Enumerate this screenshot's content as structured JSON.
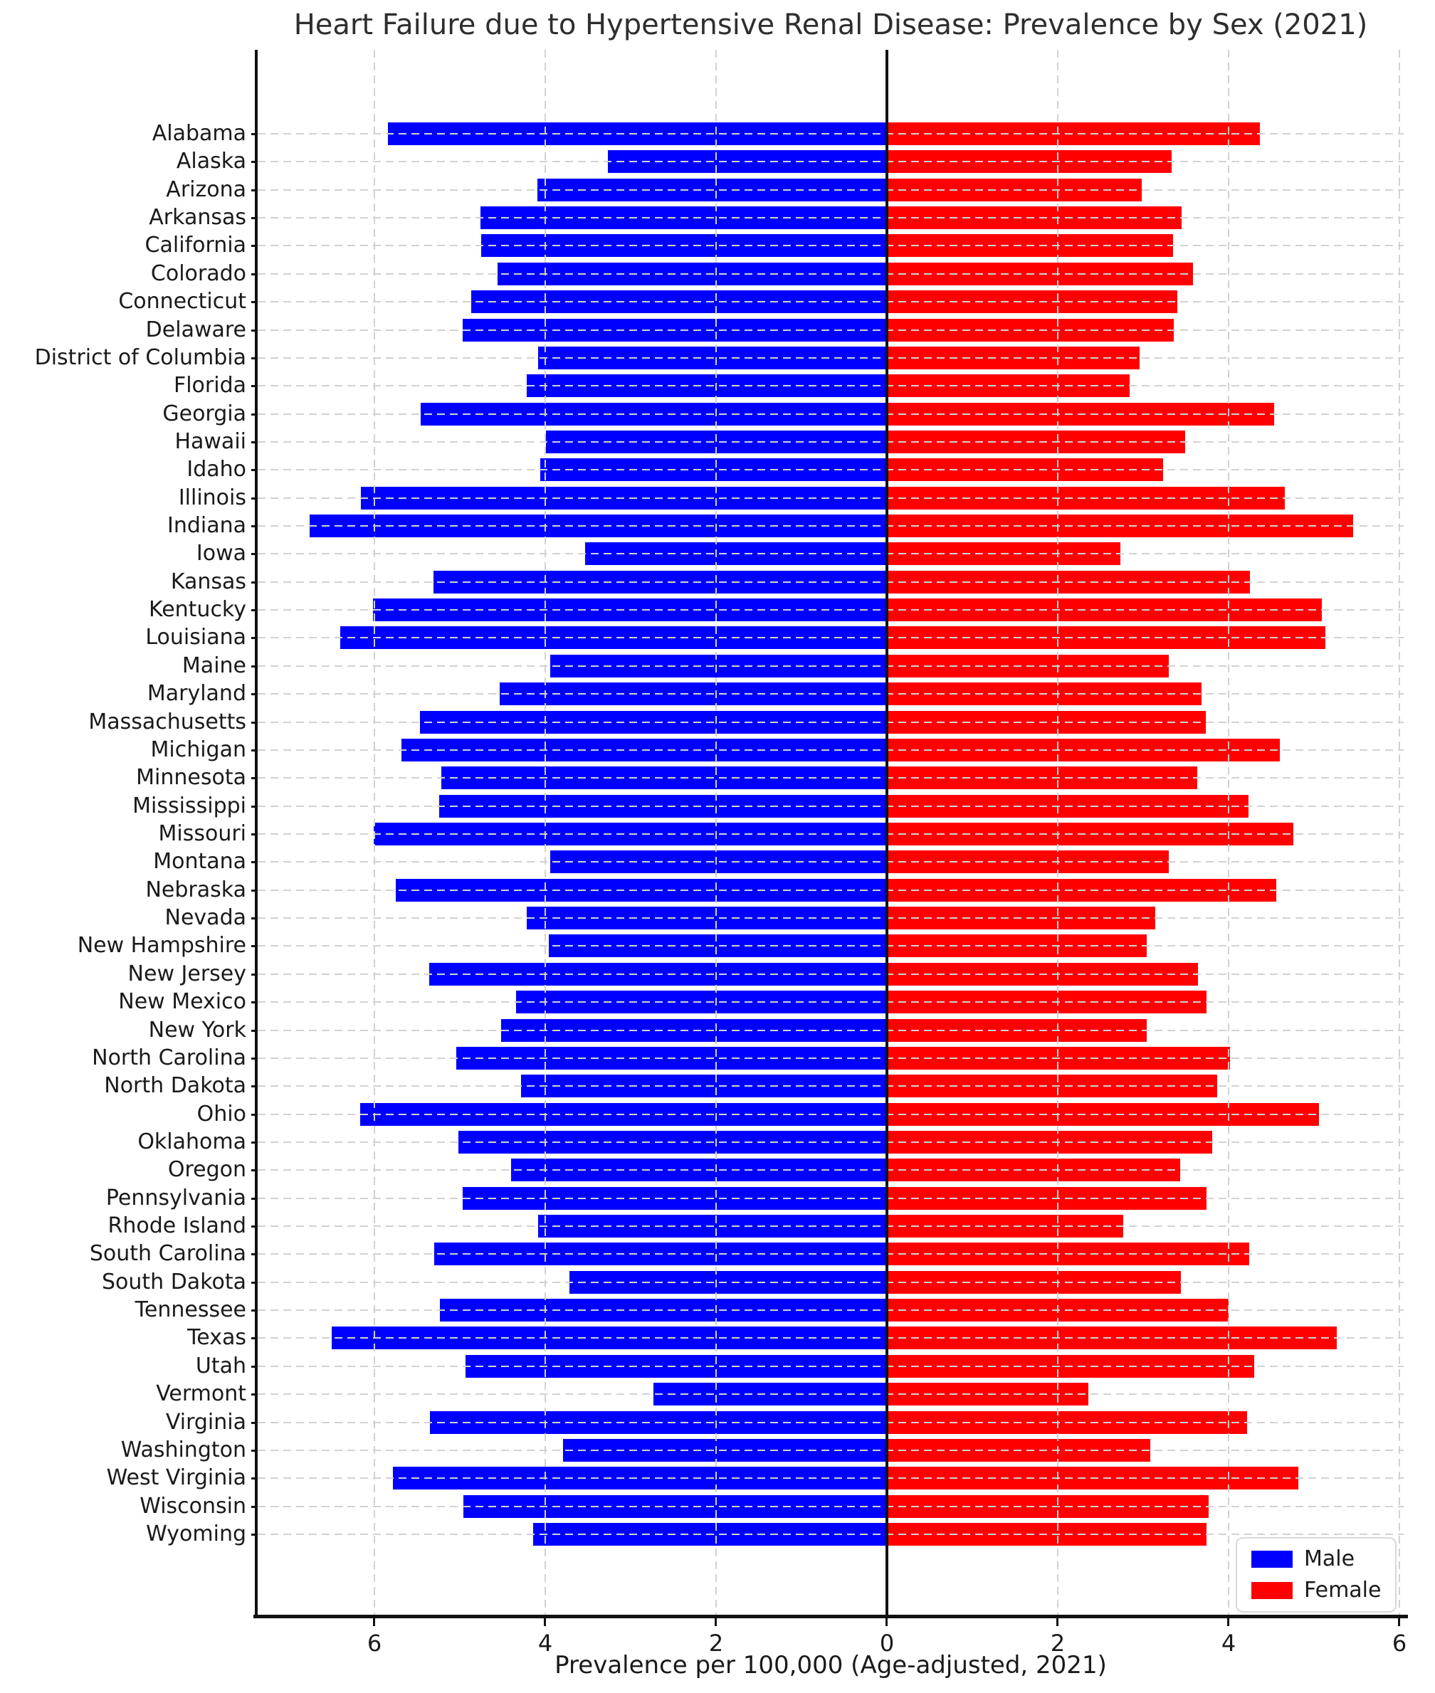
{
  "chart_data": {
    "type": "bar",
    "variant": "diverging-horizontal-pyramid",
    "title": "Heart Failure due to Hypertensive Renal Disease: Prevalence by Sex (2021)",
    "xlabel": "Prevalence per 100,000 (Age-adjusted, 2021)",
    "ylabel": "",
    "grid": true,
    "xlim": [
      -7.37,
      6.05
    ],
    "x_axis": {
      "tick_values": [
        -6,
        -4,
        -2,
        0,
        2,
        4,
        6
      ],
      "tick_labels": [
        "6",
        "4",
        "2",
        "0",
        "2",
        "4",
        "6"
      ]
    },
    "legend": {
      "position": "lower right",
      "entries": [
        {
          "label": "Male",
          "color": "#0000FF"
        },
        {
          "label": "Female",
          "color": "#FF0000"
        }
      ]
    },
    "categories": [
      "Alabama",
      "Alaska",
      "Arizona",
      "Arkansas",
      "California",
      "Colorado",
      "Connecticut",
      "Delaware",
      "District of Columbia",
      "Florida",
      "Georgia",
      "Hawaii",
      "Idaho",
      "Illinois",
      "Indiana",
      "Iowa",
      "Kansas",
      "Kentucky",
      "Louisiana",
      "Maine",
      "Maryland",
      "Massachusetts",
      "Michigan",
      "Minnesota",
      "Mississippi",
      "Missouri",
      "Montana",
      "Nebraska",
      "Nevada",
      "New Hampshire",
      "New Jersey",
      "New Mexico",
      "New York",
      "North Carolina",
      "North Dakota",
      "Ohio",
      "Oklahoma",
      "Oregon",
      "Pennsylvania",
      "Rhode Island",
      "South Carolina",
      "South Dakota",
      "Tennessee",
      "Texas",
      "Utah",
      "Vermont",
      "Virginia",
      "Washington",
      "West Virginia",
      "Wisconsin",
      "Wyoming"
    ],
    "series": [
      {
        "name": "Male",
        "color": "#0000FF",
        "direction": "left",
        "values": [
          5.84,
          3.27,
          4.09,
          4.76,
          4.75,
          4.56,
          4.87,
          4.97,
          4.08,
          4.22,
          5.46,
          3.99,
          4.06,
          6.16,
          6.76,
          3.53,
          5.31,
          6.02,
          6.4,
          3.94,
          4.53,
          5.47,
          5.68,
          5.22,
          5.24,
          6.01,
          3.94,
          5.75,
          4.22,
          3.96,
          5.36,
          4.34,
          4.52,
          5.04,
          4.28,
          6.17,
          5.02,
          4.4,
          4.97,
          4.08,
          5.3,
          3.72,
          5.23,
          6.5,
          4.93,
          2.73,
          5.35,
          3.79,
          5.78,
          4.96,
          4.14
        ]
      },
      {
        "name": "Female",
        "color": "#FF0000",
        "direction": "right",
        "values": [
          4.37,
          3.33,
          2.98,
          3.45,
          3.35,
          3.58,
          3.4,
          3.36,
          2.96,
          2.84,
          4.53,
          3.49,
          3.23,
          4.66,
          5.46,
          2.73,
          4.25,
          5.09,
          5.13,
          3.3,
          3.68,
          3.73,
          4.6,
          3.63,
          4.23,
          4.76,
          3.3,
          4.56,
          3.14,
          3.04,
          3.64,
          3.74,
          3.04,
          4.02,
          3.87,
          5.06,
          3.81,
          3.43,
          3.74,
          2.77,
          4.24,
          3.44,
          4.0,
          5.27,
          4.3,
          2.36,
          4.22,
          3.08,
          4.82,
          3.77,
          3.74
        ]
      }
    ]
  },
  "colors": {
    "male": "#0000FF",
    "female": "#FF0000",
    "grid": "#d2d2d2",
    "axis": "#111111",
    "text": "#1a1a1a",
    "title": "#2e2e2e",
    "background": "#ffffff",
    "legend_border": "#d8d8d8"
  }
}
